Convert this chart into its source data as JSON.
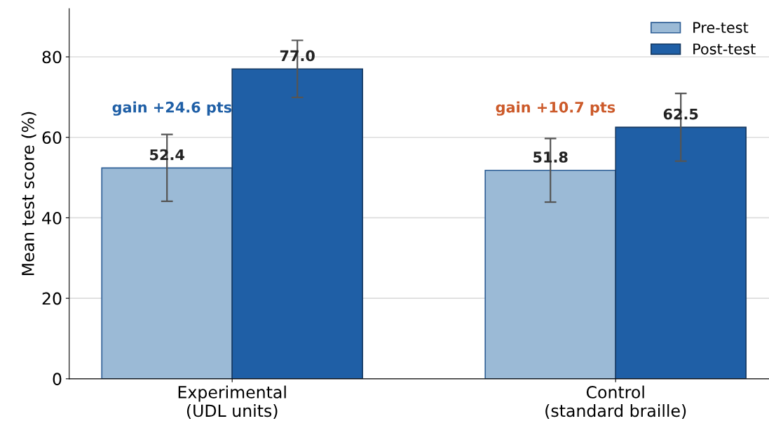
{
  "chart_data": {
    "type": "bar",
    "ylabel": "Mean test score (%)",
    "categories": [
      "Experimental\n(UDL units)",
      "Control\n(standard braille)"
    ],
    "series": [
      {
        "name": "Pre-test",
        "color": "#9bbad6",
        "values": [
          52.4,
          51.8
        ],
        "errors": [
          8.3,
          7.9
        ],
        "value_labels": [
          "52.4",
          "51.8"
        ]
      },
      {
        "name": "Post-test",
        "color": "#1f5fa6",
        "values": [
          77.0,
          62.5
        ],
        "errors": [
          7.1,
          8.4
        ],
        "value_labels": [
          "77.0",
          "62.5"
        ]
      }
    ],
    "annotations": [
      "gain +24.6 pts",
      "gain +10.7 pts"
    ],
    "ylim": [
      0,
      92
    ],
    "yticks": [
      0,
      20,
      40,
      60,
      80
    ],
    "grid": "y",
    "legend": "top right"
  }
}
